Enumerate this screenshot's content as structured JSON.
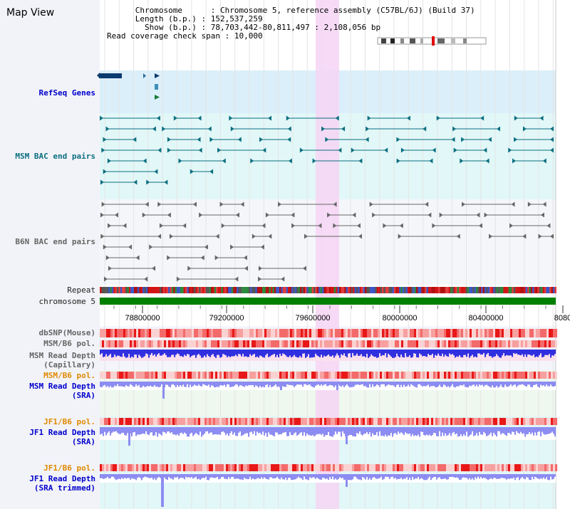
{
  "app": {
    "title": "Map View"
  },
  "header": {
    "chromosome_key": "Chromosome",
    "chromosome_value": "Chromosome 5, reference assembly (C57BL/6J) (Build 37)",
    "length_key": "Length (b.p.)",
    "length_value": "152,537,259",
    "show_key": "Show (b.p.)",
    "show_value": "78,703,442-80,811,497 : 2,108,056 bp",
    "coverage_key": "Read coverage check span",
    "coverage_value": "10,000"
  },
  "tracks": {
    "refseq": "RefSeq Genes",
    "msm_bac": "MSM BAC end pairs",
    "b6n_bac": "B6N BAC end pairs",
    "repeat": "Repeat",
    "chromosome": "chromosome 5",
    "dbsnp": "dbSNP(Mouse)",
    "msm_b6_pol_1": "MSM/B6 pol.",
    "msm_read_depth_cap_1": "MSM Read Depth",
    "msm_read_depth_cap_2": "(Capillary)",
    "msm_b6_pol_2": "MSM/B6 pol.",
    "msm_read_depth_sra_1": "MSM Read Depth",
    "msm_read_depth_sra_2": "(SRA)",
    "jf1_b6_pol_1": "JF1/B6 pol.",
    "jf1_read_depth_sra_1": "JF1 Read Depth",
    "jf1_read_depth_sra_2": "(SRA)",
    "jf1_b6_pol_2": "JF1/B6 pol.",
    "jf1_read_depth_trim_1": "JF1 Read Depth",
    "jf1_read_depth_trim_2": "(SRA trimmed)"
  },
  "axis": {
    "ticks": [
      "78800000",
      "79200000",
      "79600000",
      "80000000",
      "80400000",
      "8080"
    ]
  },
  "colors": {
    "refseq_bg": "#dbeffa",
    "teal_bg": "#e2f7f7",
    "gray_bg": "#f5f6fa",
    "highlight": "#f6d5f4",
    "teal": "#0b6f80",
    "gray": "#666666",
    "chrom_green": "#008000",
    "depth_blue": "#3030e0",
    "depth_violet": "#8c8cf2"
  }
}
